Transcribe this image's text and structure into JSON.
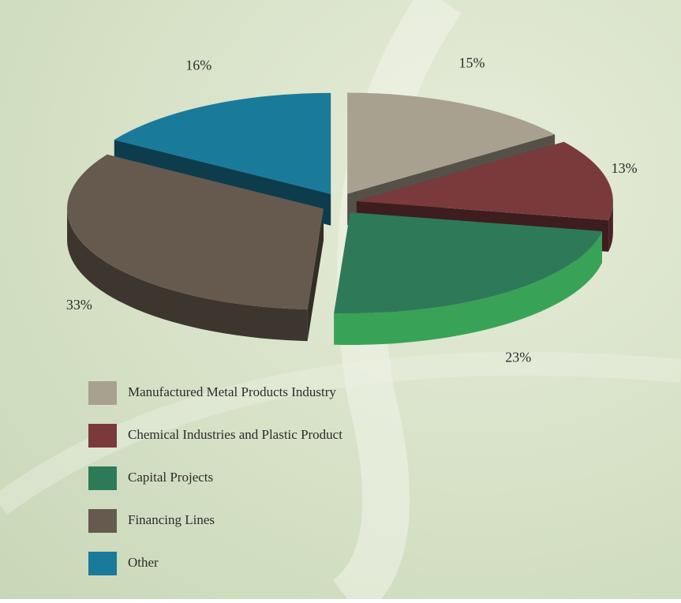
{
  "chart_data": {
    "type": "pie",
    "categories": [
      "Manufactured Metal Products Industry",
      "Chemical Industries and Plastic Product",
      "Capital Projects",
      "Financing Lines",
      "Other"
    ],
    "values": [
      15,
      13,
      23,
      33,
      16
    ],
    "value_labels": [
      "15%",
      "13%",
      "23%",
      "33%",
      "16%"
    ],
    "colors": [
      "#a9a18f",
      "#7a3a3c",
      "#2e7a58",
      "#665a4f",
      "#1a7a99"
    ]
  }
}
